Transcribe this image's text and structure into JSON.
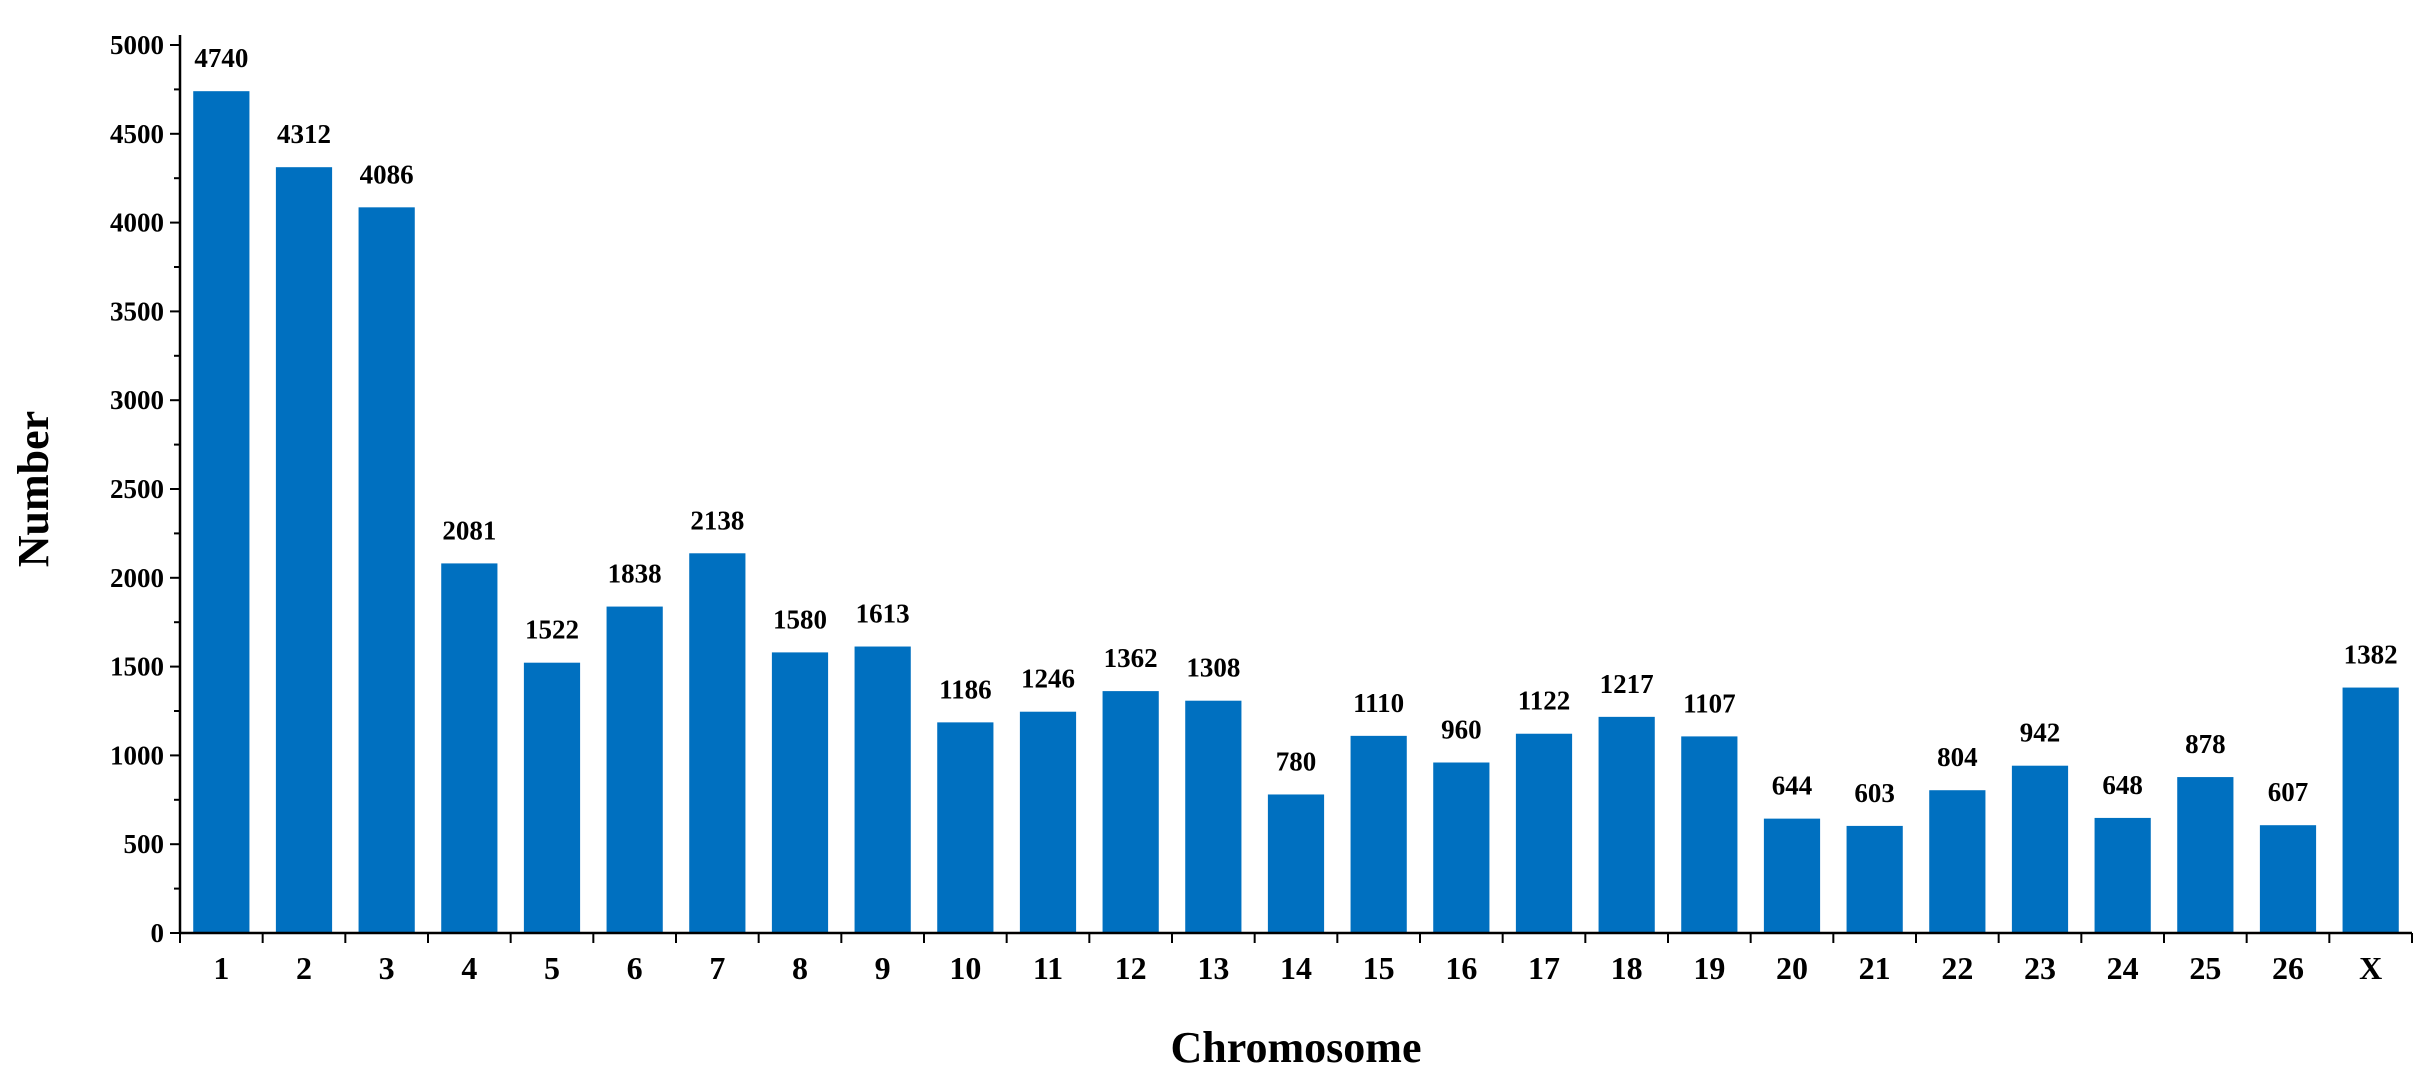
{
  "chart_data": {
    "type": "bar",
    "xlabel": "Chromosome",
    "ylabel": "Number",
    "ylim": [
      0,
      5000
    ],
    "ytick_values": [
      0,
      500,
      1000,
      1500,
      2000,
      2500,
      3000,
      3500,
      4000,
      4500,
      5000
    ],
    "ytick_labels": [
      "0",
      "500",
      "1000",
      "1500",
      "2000",
      "2500",
      "3000",
      "3500",
      "4000",
      "4500",
      "5000"
    ],
    "categories": [
      "1",
      "2",
      "3",
      "4",
      "5",
      "6",
      "7",
      "8",
      "9",
      "10",
      "11",
      "12",
      "13",
      "14",
      "15",
      "16",
      "17",
      "18",
      "19",
      "20",
      "21",
      "22",
      "23",
      "24",
      "25",
      "26",
      "X"
    ],
    "values": [
      4740,
      4312,
      4086,
      2081,
      1522,
      1838,
      2138,
      1580,
      1613,
      1186,
      1246,
      1362,
      1308,
      780,
      1110,
      960,
      1122,
      1217,
      1107,
      644,
      603,
      804,
      942,
      648,
      878,
      607,
      1382
    ],
    "data_labels": [
      "4740",
      "4312",
      "4086",
      "2081",
      "1522",
      "1838",
      "2138",
      "1580",
      "1613",
      "1186",
      "1246",
      "1362",
      "1308",
      "780",
      "1110",
      "960",
      "1122",
      "1217",
      "1107",
      "644",
      "603",
      "804",
      "942",
      "648",
      "878",
      "607",
      "1382"
    ],
    "bar_color": "#0070C0",
    "axis_color": "#000000",
    "grid": false,
    "legend": "none"
  }
}
